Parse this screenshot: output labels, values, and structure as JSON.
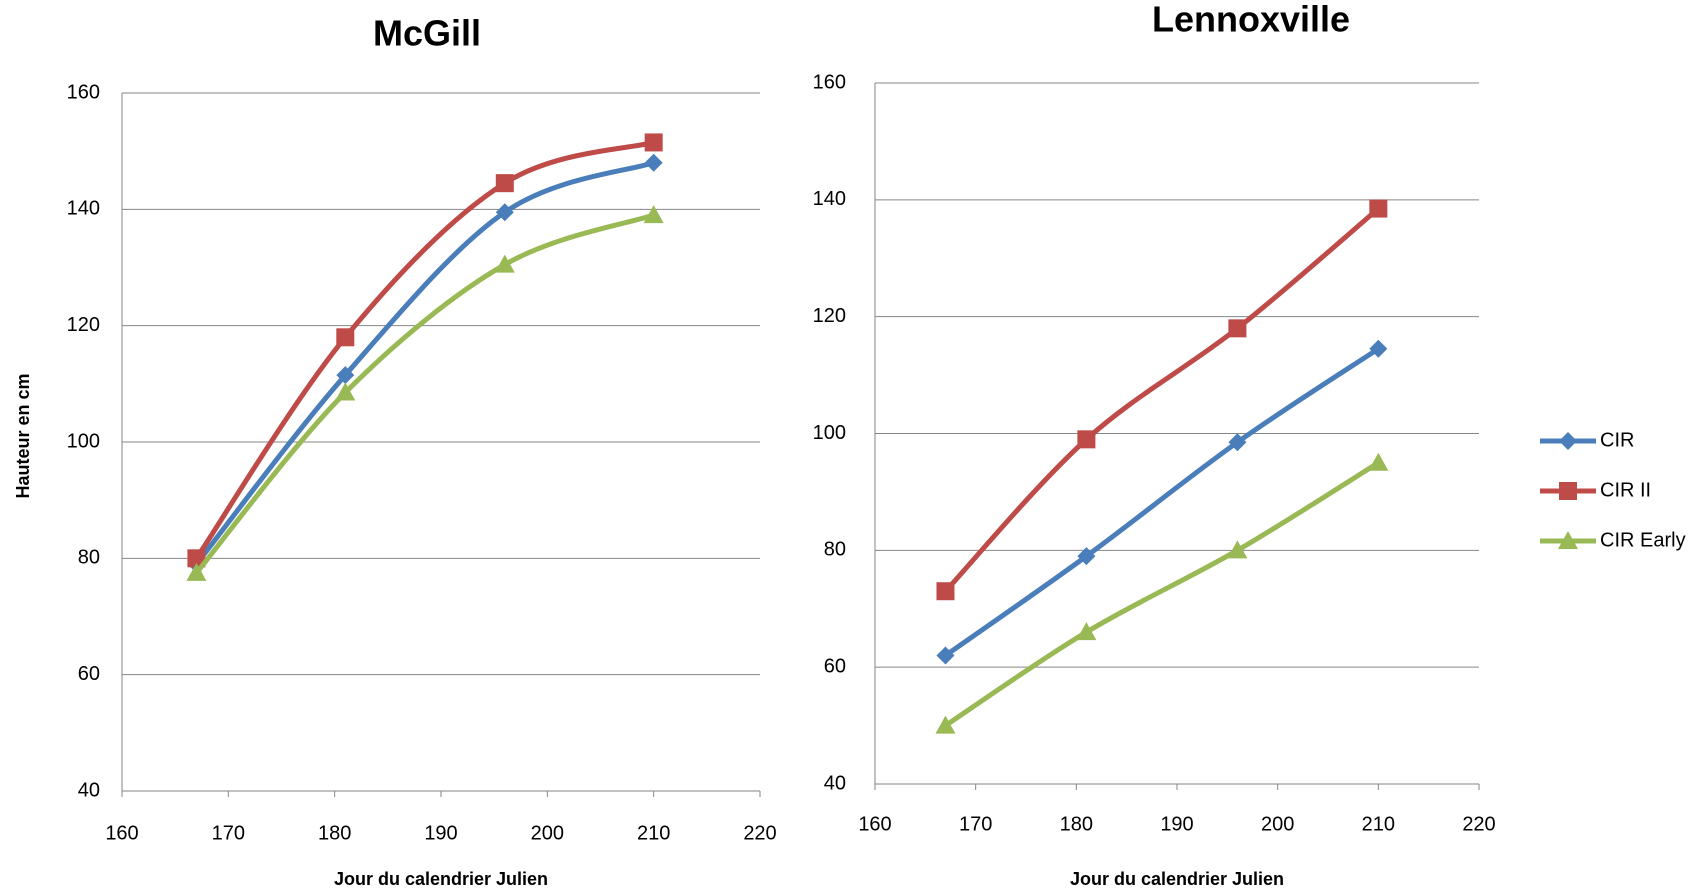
{
  "chart_data": [
    {
      "type": "line",
      "title": "McGill",
      "x_label": "Jour du calendrier Julien",
      "y_label": "Hauteur en cm",
      "x": [
        167,
        181,
        196,
        210
      ],
      "series": [
        {
          "color": "#4a7ebb",
          "marker": "diamond",
          "values": [
            79,
            111.5,
            139.5,
            148
          ]
        },
        {
          "color": "#be4b48",
          "marker": "square",
          "values": [
            80,
            118,
            144.5,
            151.5
          ]
        },
        {
          "color": "#98b954",
          "marker": "triangle",
          "values": [
            77.5,
            108.5,
            130.5,
            139
          ]
        }
      ],
      "xlim": [
        160,
        220
      ],
      "xticks": [
        160,
        170,
        180,
        190,
        200,
        210,
        220
      ],
      "ylim": [
        40,
        160
      ],
      "yticks": [
        40,
        60,
        80,
        100,
        120,
        140,
        160
      ],
      "grid": true,
      "legend": false,
      "smooth": true
    },
    {
      "type": "line",
      "title": "Lennoxville",
      "x_label": "Jour du calendrier Julien",
      "x": [
        167,
        181,
        196,
        210
      ],
      "series": [
        {
          "name": "CIR",
          "color": "#4a7ebb",
          "marker": "diamond",
          "values": [
            62,
            79,
            98.5,
            114.5
          ]
        },
        {
          "name": "CIR II",
          "color": "#be4b48",
          "marker": "square",
          "values": [
            73,
            99,
            118,
            138.5
          ]
        },
        {
          "name": "CIR Early",
          "color": "#98b954",
          "marker": "triangle",
          "values": [
            50,
            66,
            80,
            95
          ]
        }
      ],
      "xlim": [
        160,
        220
      ],
      "xticks": [
        160,
        170,
        180,
        190,
        200,
        210,
        220
      ],
      "ylim": [
        40,
        160
      ],
      "yticks": [
        40,
        60,
        80,
        100,
        120,
        140,
        160
      ],
      "grid": true,
      "legend": "right",
      "smooth": true
    }
  ]
}
